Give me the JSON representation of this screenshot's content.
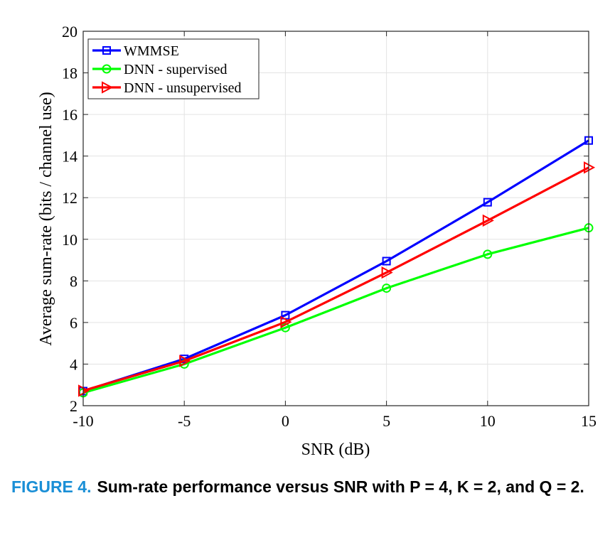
{
  "chart_data": {
    "type": "line",
    "xlabel": "SNR (dB)",
    "ylabel": "Average sum-rate (bits / channel use)",
    "xlim": [
      -10,
      15
    ],
    "ylim": [
      2,
      20
    ],
    "x_ticks": [
      "-10",
      "-5",
      "0",
      "5",
      "10",
      "15"
    ],
    "y_ticks": [
      "2",
      "4",
      "6",
      "8",
      "10",
      "12",
      "14",
      "16",
      "18",
      "20"
    ],
    "grid": true,
    "legend_position": "top-left",
    "x": [
      -10,
      -5,
      0,
      5,
      10,
      15
    ],
    "series": [
      {
        "name": "WMMSE",
        "values": [
          2.7,
          4.25,
          6.35,
          8.95,
          11.78,
          14.75
        ],
        "color": "#0000ff",
        "marker": "square"
      },
      {
        "name": "DNN - supervised",
        "values": [
          2.62,
          4.0,
          5.75,
          7.65,
          9.28,
          10.55
        ],
        "color": "#00ff00",
        "marker": "circle"
      },
      {
        "name": "DNN - unsupervised",
        "values": [
          2.72,
          4.15,
          6.02,
          8.4,
          10.9,
          13.45
        ],
        "color": "#ff0000",
        "marker": "triangle-right"
      }
    ]
  },
  "caption": {
    "label": "FIGURE 4.",
    "text": "Sum-rate performance versus SNR with P = 4, K = 2, and Q = 2."
  }
}
